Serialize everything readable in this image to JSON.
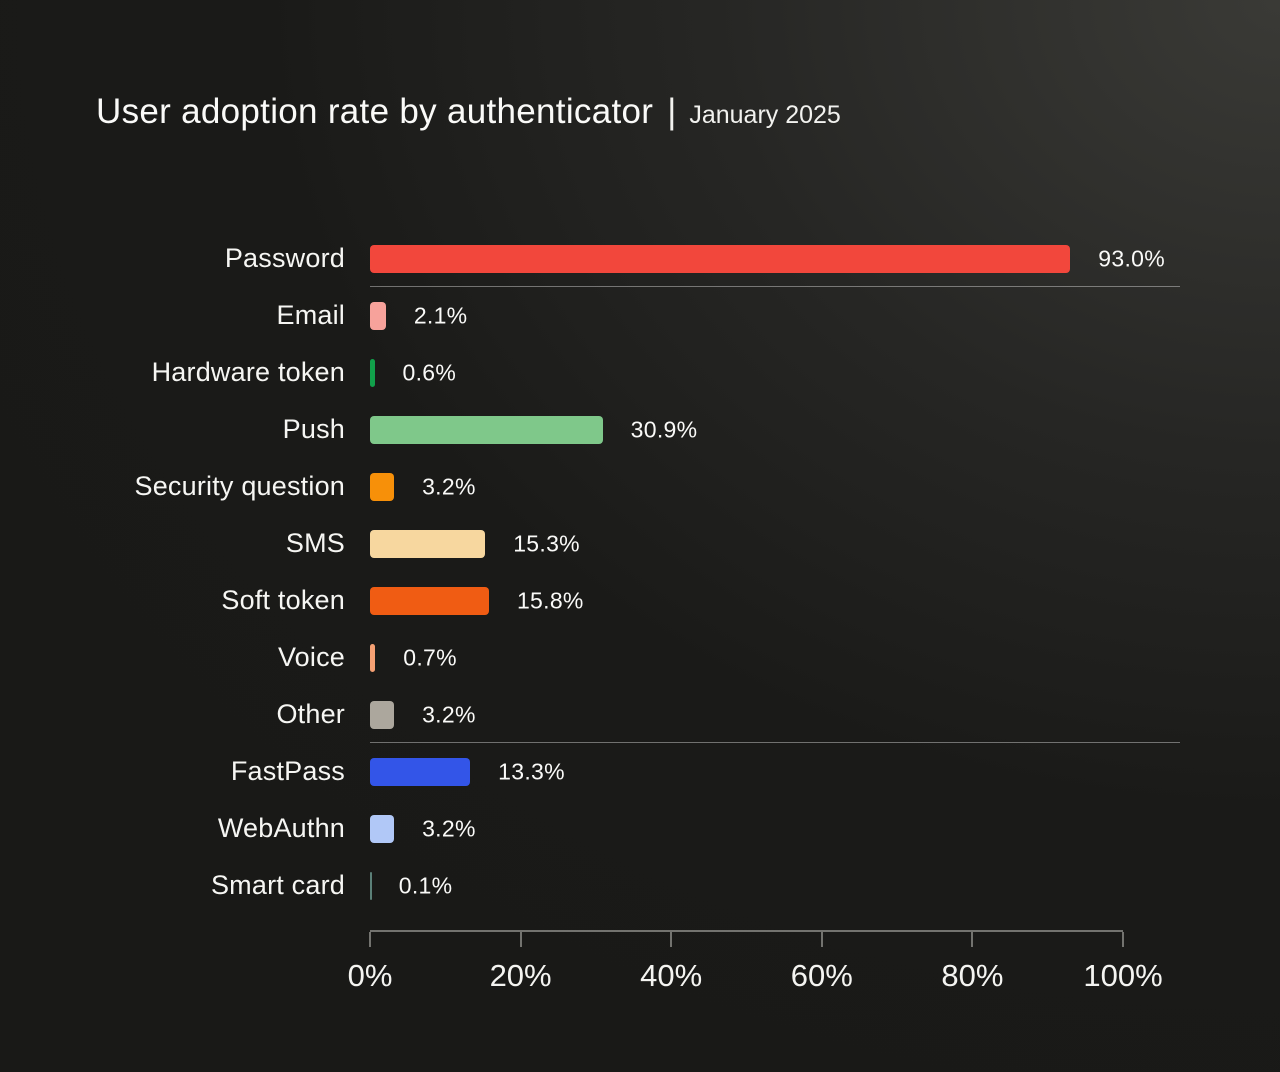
{
  "header": {
    "title": "User adoption rate by authenticator",
    "pipe": "|",
    "subtitle": "January 2025"
  },
  "chart_data": {
    "type": "bar",
    "orientation": "horizontal",
    "title": "User adoption rate by authenticator",
    "subtitle": "January 2025",
    "categories": [
      "Password",
      "Email",
      "Hardware token",
      "Push",
      "Security question",
      "SMS",
      "Soft token",
      "Voice",
      "Other",
      "FastPass",
      "WebAuthn",
      "Smart card"
    ],
    "values": [
      93.0,
      2.1,
      0.6,
      30.9,
      3.2,
      15.3,
      15.8,
      0.7,
      3.2,
      13.3,
      3.2,
      0.1
    ],
    "value_labels": [
      "93.0%",
      "2.1%",
      "0.6%",
      "30.9%",
      "3.2%",
      "15.3%",
      "15.8%",
      "0.7%",
      "3.2%",
      "13.3%",
      "3.2%",
      "0.1%"
    ],
    "colors": [
      "#F2473C",
      "#F7A29B",
      "#11A04A",
      "#7FC88A",
      "#F79009",
      "#F7D79F",
      "#F05C13",
      "#F5A073",
      "#ACA79D",
      "#3355E8",
      "#B1C8F7",
      "#5B8078"
    ],
    "xlabel": "",
    "ylabel": "",
    "xlim": [
      0,
      100
    ],
    "xticks": [
      {
        "value": 0,
        "label": "0%"
      },
      {
        "value": 20,
        "label": "20%"
      },
      {
        "value": 40,
        "label": "40%"
      },
      {
        "value": 60,
        "label": "60%"
      },
      {
        "value": 80,
        "label": "80%"
      },
      {
        "value": 100,
        "label": "100%"
      }
    ],
    "separators_after_indices": [
      0,
      8
    ],
    "grid": false,
    "legend": false,
    "background_base_color": "#191917",
    "background_glow_color": "#3a3a36",
    "axis_color": "#73736F",
    "separator_color": "rgba(255,255,255,0.38)",
    "text_color": "#FAFAF8"
  }
}
